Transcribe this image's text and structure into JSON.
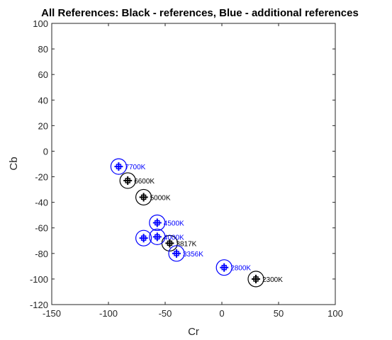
{
  "chart_data": {
    "type": "scatter",
    "title": "All References: Black - references, Blue - additional references",
    "xlabel": "Cr",
    "ylabel": "Cb",
    "xlim": [
      -150,
      100
    ],
    "ylim": [
      -120,
      100
    ],
    "xticks": [
      "-150",
      "-100",
      "-50",
      "0",
      "50",
      "100"
    ],
    "yticks": [
      "100",
      "80",
      "60",
      "40",
      "20",
      "0",
      "-20",
      "-40",
      "-60",
      "-80",
      "-100",
      "-120"
    ],
    "grid": false,
    "series": [
      {
        "color": "#000000",
        "points": [
          {
            "x": -83,
            "y": -23,
            "label": "6600K"
          },
          {
            "x": -69,
            "y": -36,
            "label": "5000K"
          },
          {
            "x": -46,
            "y": -72,
            "label": "3817K"
          },
          {
            "x": 30,
            "y": -100,
            "label": "2300K"
          }
        ]
      },
      {
        "color": "#0000ff",
        "points": [
          {
            "x": -91,
            "y": -12,
            "label": "7700K"
          },
          {
            "x": -57,
            "y": -56,
            "label": "4500K"
          },
          {
            "x": -69,
            "y": -68,
            "label": ""
          },
          {
            "x": -57,
            "y": -67,
            "label": "4000K"
          },
          {
            "x": -40,
            "y": -80,
            "label": "3356K"
          },
          {
            "x": 2,
            "y": -91,
            "label": "2800K"
          }
        ]
      }
    ]
  }
}
